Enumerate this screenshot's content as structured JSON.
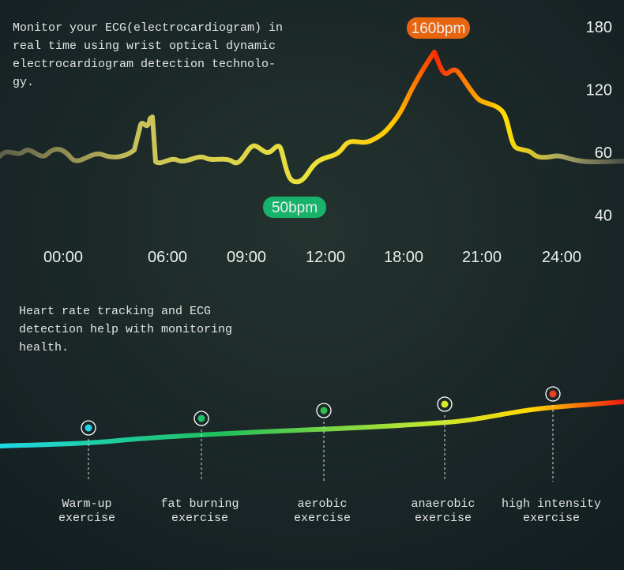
{
  "top_text": {
    "lines": [
      "Monitor your ECG(electrocardiogram) in",
      "real time using wrist optical dynamic",
      "electrocardiogram detection technolo-",
      "gy."
    ]
  },
  "peak_label": "160bpm",
  "low_label": "50bpm",
  "y_labels": [
    "180",
    "120",
    "60",
    "40"
  ],
  "x_labels": [
    "00:00",
    "06:00",
    "09:00",
    "12:00",
    "18:00",
    "21:00",
    "24:00"
  ],
  "middle_text": {
    "lines": [
      "Heart rate tracking and ECG",
      "detection help with monitoring",
      "health."
    ]
  },
  "stages": [
    {
      "lines": [
        "Warm-up",
        "exercise"
      ],
      "color": "#22d3e0"
    },
    {
      "lines": [
        "fat burning",
        "exercise"
      ],
      "color": "#1fc06a"
    },
    {
      "lines": [
        "aerobic",
        "exercise"
      ],
      "color": "#2fbf4a"
    },
    {
      "lines": [
        "anaerobic",
        "exercise"
      ],
      "color": "#d6e82a"
    },
    {
      "lines": [
        "high intensity",
        "exercise"
      ],
      "color": "#f0421a"
    }
  ]
}
